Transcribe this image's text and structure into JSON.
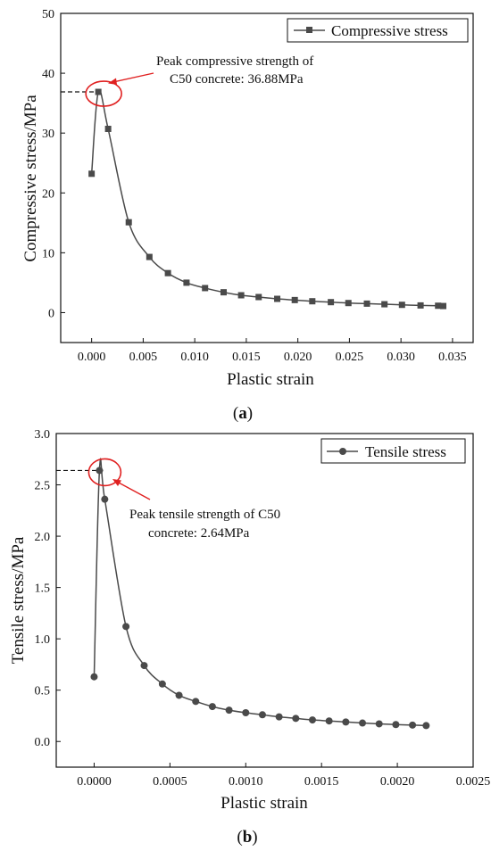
{
  "chart_data": [
    {
      "type": "line",
      "xlabel": "Plastic strain",
      "ylabel": "Compressive stress/MPa",
      "xlim": [
        -0.003,
        0.037
      ],
      "ylim": [
        -5,
        50
      ],
      "xticks": [
        "0.000",
        "0.005",
        "0.010",
        "0.015",
        "0.020",
        "0.025",
        "0.030",
        "0.035"
      ],
      "xtick_values": [
        0,
        0.005,
        0.01,
        0.015,
        0.02,
        0.025,
        0.03,
        0.035
      ],
      "yticks": [
        "0",
        "10",
        "20",
        "30",
        "40",
        "50"
      ],
      "ytick_values": [
        0,
        10,
        20,
        30,
        40,
        50
      ],
      "grid": false,
      "legend_position": "top-right",
      "series": [
        {
          "name": "Compressive stress",
          "marker": "square",
          "color": "#4a4a4a",
          "x": [
            0.0,
            0.00065,
            0.0016,
            0.0036,
            0.0056,
            0.0074,
            0.0092,
            0.011,
            0.0128,
            0.0145,
            0.0162,
            0.018,
            0.0197,
            0.0214,
            0.0232,
            0.0249,
            0.0267,
            0.0284,
            0.0301,
            0.0319,
            0.0336,
            0.0341
          ],
          "y": [
            23.2,
            36.88,
            30.7,
            15.1,
            9.3,
            6.6,
            5.0,
            4.1,
            3.4,
            2.9,
            2.6,
            2.3,
            2.1,
            1.9,
            1.75,
            1.6,
            1.5,
            1.4,
            1.3,
            1.2,
            1.15,
            1.1
          ]
        }
      ],
      "peak_x": 0.00065,
      "peak_y": 36.88,
      "annotation": {
        "line1": "Peak compressive strength of",
        "line2": "C50 concrete: 36.88MPa"
      },
      "caption_letter": "a"
    },
    {
      "type": "line",
      "xlabel": "Plastic strain",
      "ylabel": "Tensile stress/MPa",
      "xlim": [
        -0.00025,
        0.0025
      ],
      "ylim": [
        -0.25,
        3.0
      ],
      "xticks": [
        "0.0000",
        "0.0005",
        "0.0010",
        "0.0015",
        "0.0020",
        "0.0025"
      ],
      "xtick_values": [
        0,
        0.0005,
        0.001,
        0.0015,
        0.002,
        0.0025
      ],
      "yticks": [
        "0.0",
        "0.5",
        "1.0",
        "1.5",
        "2.0",
        "2.5",
        "3.0"
      ],
      "ytick_values": [
        0,
        0.5,
        1.0,
        1.5,
        2.0,
        2.5,
        3.0
      ],
      "grid": false,
      "legend_position": "top-right",
      "series": [
        {
          "name": "Tensile stress",
          "marker": "circle",
          "color": "#4a4a4a",
          "x": [
            0.0,
            3.5e-05,
            7e-05,
            0.00021,
            0.00033,
            0.00045,
            0.00056,
            0.00067,
            0.00078,
            0.00089,
            0.001,
            0.00111,
            0.00122,
            0.00133,
            0.00144,
            0.00155,
            0.00166,
            0.00177,
            0.00188,
            0.00199,
            0.0021,
            0.00219
          ],
          "y": [
            0.63,
            2.64,
            2.36,
            1.12,
            0.74,
            0.56,
            0.45,
            0.39,
            0.34,
            0.305,
            0.28,
            0.26,
            0.24,
            0.225,
            0.21,
            0.2,
            0.19,
            0.18,
            0.172,
            0.165,
            0.16,
            0.155
          ]
        }
      ],
      "peak_x": 3.5e-05,
      "peak_y": 2.64,
      "annotation": {
        "line1": "Peak tensile strength of C50",
        "line2": "concrete: 2.64MPa"
      },
      "caption_letter": "b"
    }
  ],
  "colors": {
    "line": "#4a4a4a",
    "highlight": "#e02020",
    "axis": "#111111"
  }
}
